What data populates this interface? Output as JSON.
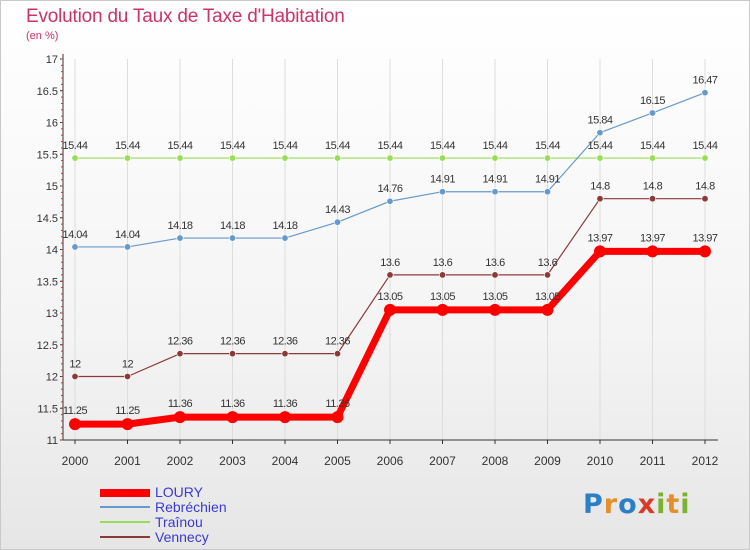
{
  "header": {
    "title": "Evolution du Taux de Taxe d'Habitation",
    "subtitle": "(en %)"
  },
  "colors": {
    "title": "#cc3366",
    "grid": "#dddddd",
    "axis": "#333333",
    "tick_red": "#cc3333"
  },
  "logo": {
    "letters": [
      "P",
      "r",
      "o",
      "x",
      "i",
      "t",
      "i"
    ],
    "colors": [
      "#2b7fc4",
      "#e3902a",
      "#2b7fc4",
      "#d93b2b",
      "#7ab332",
      "#e3902a",
      "#7ab332"
    ]
  },
  "chart_data": {
    "type": "line",
    "x": [
      "2000",
      "2001",
      "2002",
      "2003",
      "2004",
      "2005",
      "2006",
      "2007",
      "2008",
      "2009",
      "2010",
      "2011",
      "2012"
    ],
    "ylim": [
      11,
      17
    ],
    "yticks": [
      "11",
      "11.5",
      "12",
      "12.5",
      "13",
      "13.5",
      "14",
      "14.5",
      "15",
      "15.5",
      "16",
      "16.5",
      "17"
    ],
    "grid": "vertical",
    "legend_position": "bottom-left",
    "series": [
      {
        "name": "LOURY",
        "color": "#ff0000",
        "labelColor": "#3a3ad6",
        "values": [
          11.25,
          11.25,
          11.36,
          11.36,
          11.36,
          11.36,
          13.05,
          13.05,
          13.05,
          13.05,
          13.97,
          13.97,
          13.97
        ],
        "labels": [
          "11.25",
          "11.25",
          "11.36",
          "11.36",
          "11.36",
          "11.36",
          "13.05",
          "13.05",
          "13.05",
          "13.05",
          "13.97",
          "13.97",
          "13.97"
        ]
      },
      {
        "name": "Rebréchien",
        "color": "#6699cc",
        "labelColor": "#3a3ad6",
        "values": [
          14.04,
          14.04,
          14.18,
          14.18,
          14.18,
          14.43,
          14.76,
          14.91,
          14.91,
          14.91,
          15.84,
          16.15,
          16.47
        ],
        "labels": [
          "14.04",
          "14.04",
          "14.18",
          "14.18",
          "14.18",
          "14.43",
          "14.76",
          "14.91",
          "14.91",
          "14.91",
          "15.84",
          "16.15",
          "16.47"
        ]
      },
      {
        "name": "Traînou",
        "color": "#99dd55",
        "labelColor": "#3a3ad6",
        "values": [
          15.44,
          15.44,
          15.44,
          15.44,
          15.44,
          15.44,
          15.44,
          15.44,
          15.44,
          15.44,
          15.44,
          15.44,
          15.44
        ],
        "labels": [
          "15.44",
          "15.44",
          "15.44",
          "15.44",
          "15.44",
          "15.44",
          "15.44",
          "15.44",
          "15.44",
          "15.44",
          "15.44",
          "15.44",
          "15.44"
        ]
      },
      {
        "name": "Vennecy",
        "color": "#8b3a3a",
        "labelColor": "#3a3ad6",
        "values": [
          12,
          12,
          12.36,
          12.36,
          12.36,
          12.36,
          13.6,
          13.6,
          13.6,
          13.6,
          14.8,
          14.8,
          14.8
        ],
        "labels": [
          "12",
          "12",
          "12.36",
          "12.36",
          "12.36",
          "12.36",
          "13.6",
          "13.6",
          "13.6",
          "13.6",
          "14.8",
          "14.8",
          "14.8"
        ]
      }
    ]
  }
}
